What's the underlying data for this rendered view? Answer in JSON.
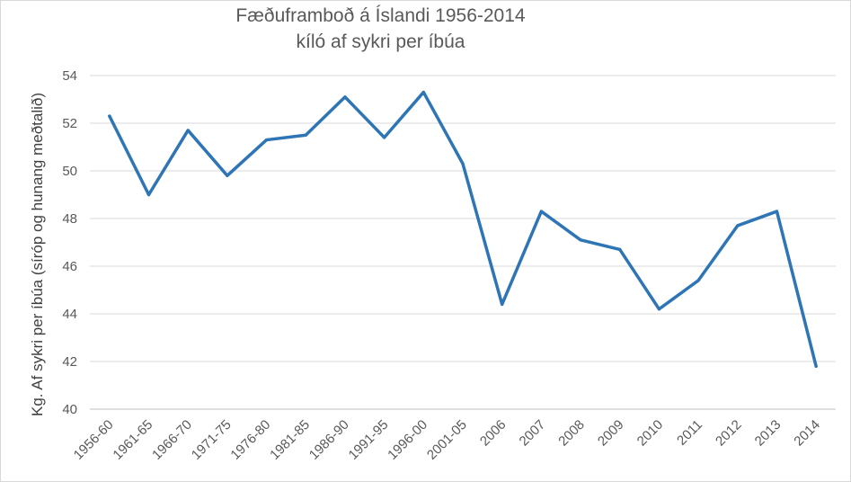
{
  "chart_data": {
    "type": "line",
    "title": "Fæðuframboð á Íslandi 1956-2014",
    "subtitle": "kíló af sykri per íbúa",
    "xlabel": "",
    "ylabel": "Kg. Af sykri per íbúa (síróp og hunang meðtalið)",
    "ylim": [
      40,
      54
    ],
    "yticks": [
      "40",
      "42",
      "44",
      "46",
      "48",
      "50",
      "52",
      "54"
    ],
    "ytick_values": [
      40,
      42,
      44,
      46,
      48,
      50,
      52,
      54
    ],
    "grid": true,
    "categories": [
      "1956-60",
      "1961-65",
      "1966-70",
      "1971-75",
      "1976-80",
      "1981-85",
      "1986-90",
      "1991-95",
      "1996-00",
      "2001-05",
      "2006",
      "2007",
      "2008",
      "2009",
      "2010",
      "2011",
      "2012",
      "2013",
      "2014"
    ],
    "series": [
      {
        "values": [
          52.3,
          49.0,
          51.7,
          49.8,
          51.3,
          51.5,
          53.1,
          51.4,
          53.3,
          50.3,
          44.4,
          48.3,
          47.1,
          46.7,
          44.2,
          45.4,
          47.7,
          48.3,
          41.8
        ],
        "color": "#2e75b6"
      }
    ]
  }
}
